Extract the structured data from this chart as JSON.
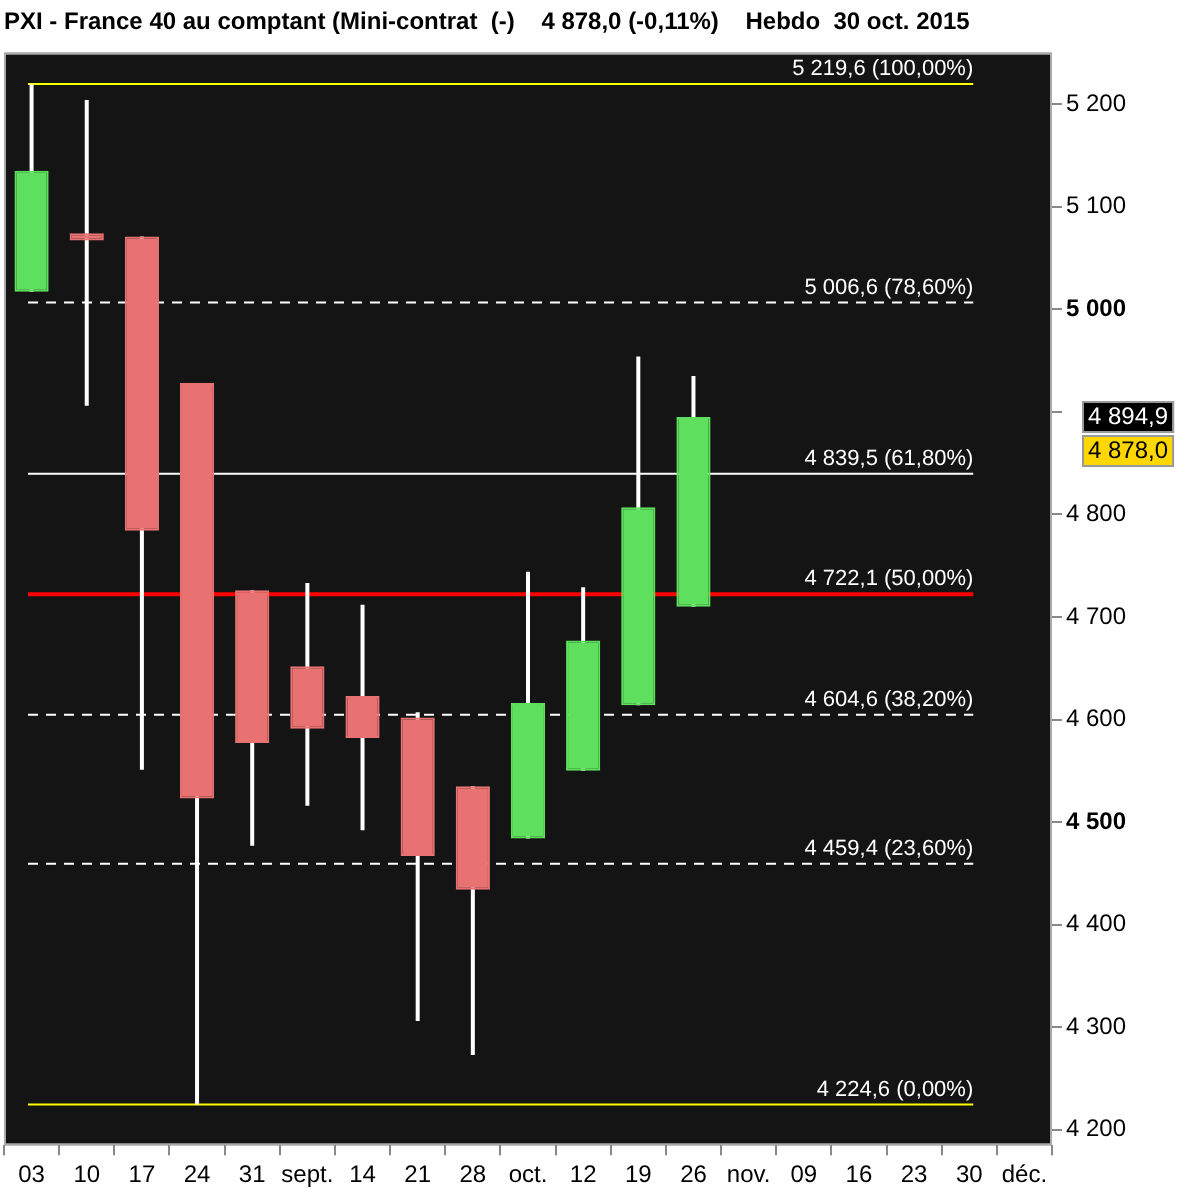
{
  "chart_data": {
    "type": "candlestick",
    "title": "PXI - France 40 au comptant (Mini-contrat  (-)    4 878,0 (-0,11%)    Hebdo  30 oct. 2015",
    "categories": [
      "03",
      "10",
      "17",
      "24",
      "31",
      "sept.",
      "14",
      "21",
      "28",
      "oct.",
      "12",
      "19",
      "26",
      "nov.",
      "09",
      "16",
      "23",
      "30",
      "déc."
    ],
    "ohlc": [
      [
        5017,
        5219.6,
        5017,
        5135
      ],
      [
        5074,
        5204,
        4906,
        5067
      ],
      [
        5071,
        5071,
        4551,
        4784
      ],
      [
        4928,
        4928,
        4224.6,
        4523
      ],
      [
        4726,
        4726,
        4477,
        4577
      ],
      [
        4652,
        4733,
        4516,
        4591
      ],
      [
        4623,
        4712,
        4492,
        4582
      ],
      [
        4602,
        4607,
        4306,
        4467
      ],
      [
        4535,
        4535,
        4273,
        4434
      ],
      [
        4484,
        4744,
        4484,
        4616
      ],
      [
        4550,
        4729,
        4550,
        4677
      ],
      [
        4614,
        4954,
        4614,
        4807
      ],
      [
        4710,
        4935,
        4710,
        4895
      ],
      null,
      null,
      null,
      null,
      null,
      null
    ],
    "colors": [
      "#5ee05e",
      "#e87272",
      "#e87272",
      "#e87272",
      "#e87272",
      "#e87272",
      "#e87272",
      "#e87272",
      "#e87272",
      "#5ee05e",
      "#5ee05e",
      "#5ee05e",
      "#5ee05e",
      null,
      null,
      null,
      null,
      null,
      null
    ],
    "ylim": [
      4185,
      5250
    ],
    "yticks": [
      {
        "value": 4200,
        "label": "4 200"
      },
      {
        "value": 4300,
        "label": "4 300"
      },
      {
        "value": 4400,
        "label": "4 400"
      },
      {
        "value": 4500,
        "label": "4 500"
      },
      {
        "value": 4600,
        "label": "4 600"
      },
      {
        "value": 4700,
        "label": "4 700"
      },
      {
        "value": 4800,
        "label": "4 800"
      },
      {
        "value": 4900,
        "label": null
      },
      {
        "value": 5000,
        "label": "5 000"
      },
      {
        "value": 5100,
        "label": "5 100"
      },
      {
        "value": 5200,
        "label": "5 200"
      }
    ],
    "ref_lines": [
      {
        "axis": "y",
        "value": 5219.6,
        "label": "5 219,6 (100,00%)",
        "color": "#ffff00",
        "line_style": "solid"
      },
      {
        "axis": "y",
        "value": 5006.6,
        "label": "5 006,6 (78,60%)",
        "color": "#ffffff",
        "line_style": "dashed"
      },
      {
        "axis": "y",
        "value": 4839.5,
        "label": "4 839,5 (61,80%)",
        "color": "#ffffff",
        "line_style": "solid"
      },
      {
        "axis": "y",
        "value": 4722.1,
        "label": "4 722,1 (50,00%)",
        "color": "#ff0000",
        "line_style": "solid"
      },
      {
        "axis": "y",
        "value": 4604.6,
        "label": "4 604,6 (38,20%)",
        "color": "#ffffff",
        "line_style": "dashed"
      },
      {
        "axis": "y",
        "value": 4459.4,
        "label": "4 459,4 (23,60%)",
        "color": "#ffffff",
        "line_style": "dashed"
      },
      {
        "axis": "y",
        "value": 4224.6,
        "label": "4 224,6 (0,00%)",
        "color": "#ffff00",
        "line_style": "solid"
      }
    ],
    "annotations": [
      "4 894,9",
      "4 878,0"
    ],
    "legend": false
  }
}
